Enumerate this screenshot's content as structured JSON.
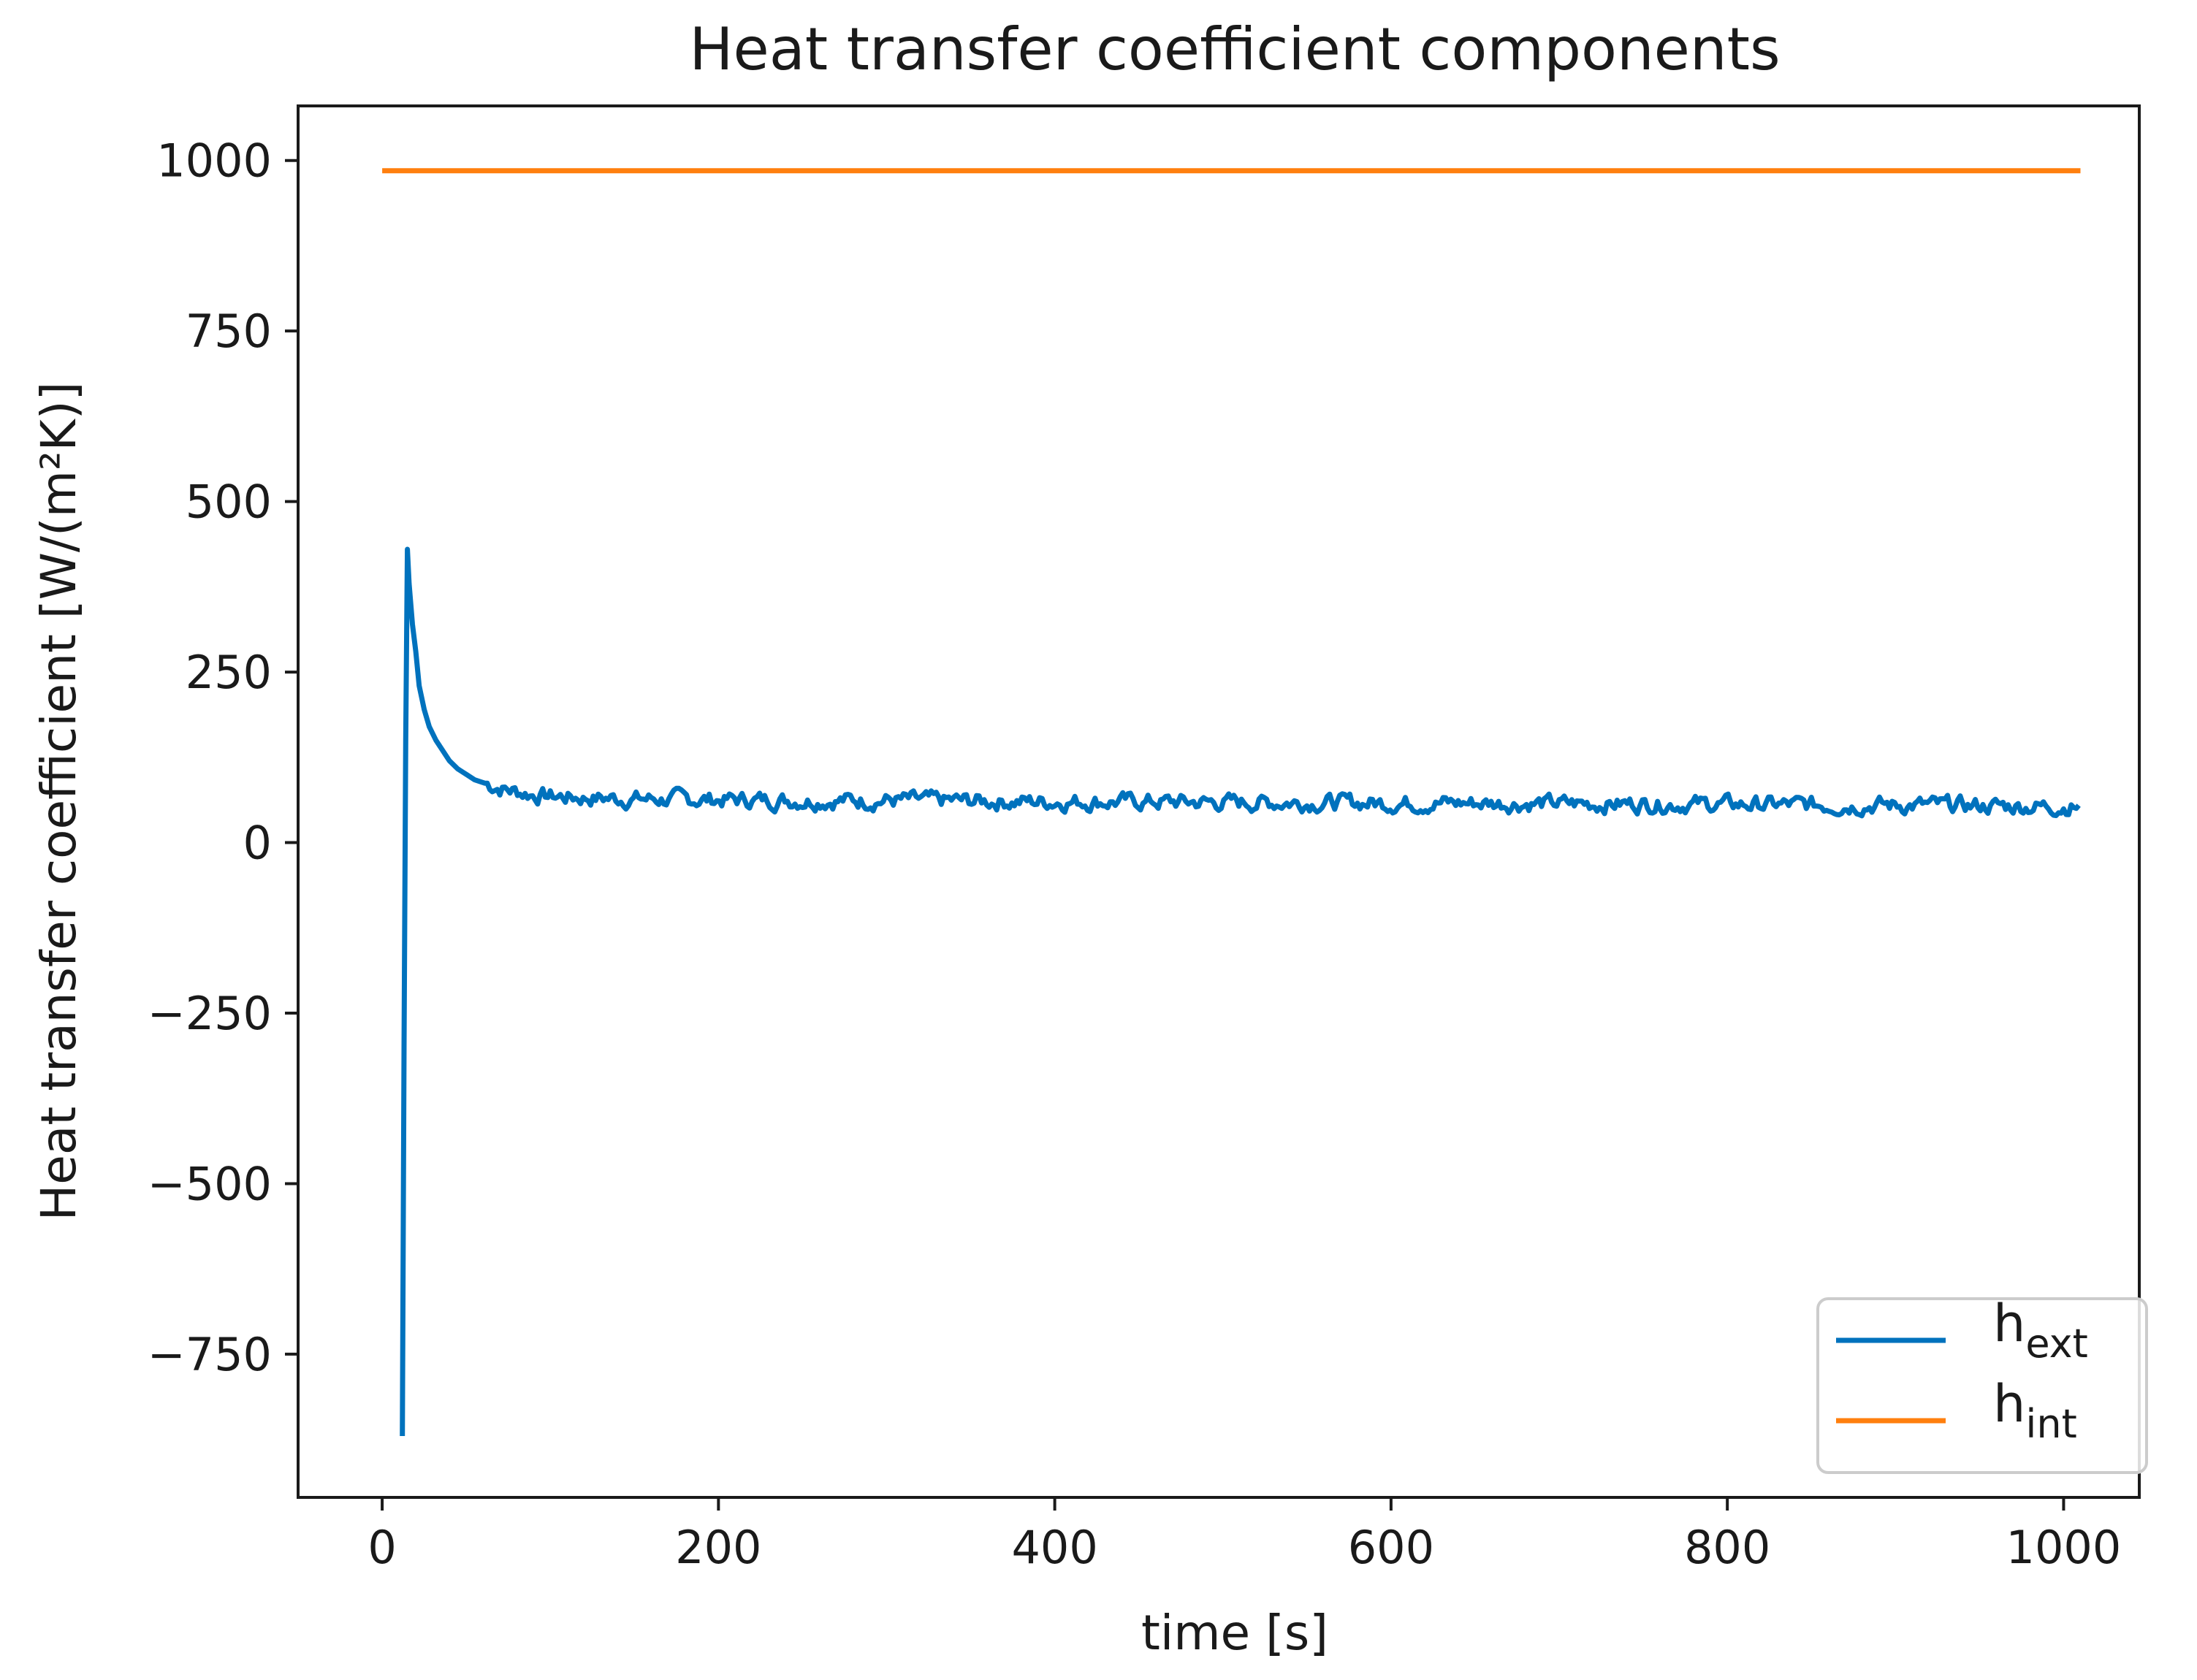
{
  "chart_data": {
    "type": "line",
    "title": "Heat transfer coefficient components",
    "xlabel": "time [s]",
    "ylabel": "Heat transfer coefficient [W/(m²K)]",
    "xlim": [
      -50,
      1045
    ],
    "ylim": [
      -960,
      1080
    ],
    "xticks": [
      0,
      200,
      400,
      600,
      800,
      1000
    ],
    "yticks": [
      -750,
      -500,
      -250,
      0,
      250,
      500,
      750,
      1000
    ],
    "xtick_labels": [
      "0",
      "200",
      "400",
      "600",
      "800",
      "1000"
    ],
    "ytick_labels": [
      "−750",
      "−500",
      "−250",
      "0",
      "250",
      "500",
      "750",
      "1000"
    ],
    "grid": false,
    "legend_position": "lower-right",
    "series": [
      {
        "name": "h",
        "subscript": "ext",
        "color": "#0072BD",
        "points": [
          [
            12,
            -870
          ],
          [
            13,
            -300
          ],
          [
            14,
            150
          ],
          [
            15,
            430
          ],
          [
            16,
            380
          ],
          [
            18,
            320
          ],
          [
            20,
            280
          ],
          [
            22,
            230
          ],
          [
            25,
            195
          ],
          [
            28,
            170
          ],
          [
            32,
            150
          ],
          [
            36,
            135
          ],
          [
            40,
            120
          ],
          [
            45,
            108
          ],
          [
            50,
            100
          ],
          [
            55,
            92
          ],
          [
            60,
            88
          ],
          [
            70,
            80
          ],
          [
            80,
            75
          ],
          [
            90,
            70
          ],
          [
            100,
            68
          ],
          [
            120,
            66
          ],
          [
            150,
            64
          ],
          [
            200,
            63
          ],
          [
            250,
            62
          ],
          [
            300,
            62
          ],
          [
            350,
            61
          ],
          [
            400,
            60
          ],
          [
            450,
            60
          ],
          [
            500,
            59
          ],
          [
            550,
            59
          ],
          [
            600,
            58
          ],
          [
            650,
            58
          ],
          [
            700,
            57
          ],
          [
            750,
            57
          ],
          [
            800,
            56
          ],
          [
            850,
            55
          ],
          [
            900,
            55
          ],
          [
            950,
            54
          ],
          [
            1000,
            53
          ],
          [
            1010,
            53
          ]
        ],
        "noise_amplitude": 10
      },
      {
        "name": "h",
        "subscript": "int",
        "color": "#FF7F0E",
        "points": [
          [
            0,
            985
          ],
          [
            1010,
            985
          ]
        ]
      }
    ]
  }
}
